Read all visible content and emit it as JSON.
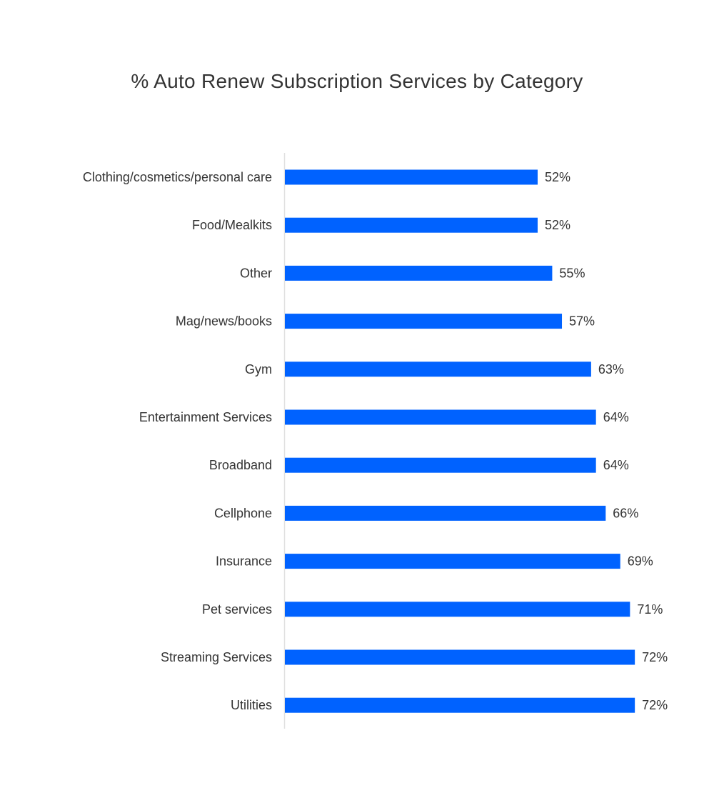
{
  "chart_data": {
    "type": "bar",
    "orientation": "horizontal",
    "title": "% Auto Renew Subscription Services by Category",
    "xlabel": "",
    "ylabel": "",
    "xlim": [
      0,
      100
    ],
    "grid": false,
    "bar_color": "#0062FF",
    "categories": [
      "Clothing/cosmetics/personal care",
      "Food/Mealkits",
      "Other",
      "Mag/news/books",
      "Gym",
      "Entertainment Services",
      "Broadband",
      "Cellphone",
      "Insurance",
      "Pet services",
      "Streaming Services",
      "Utilities"
    ],
    "values": [
      52,
      52,
      55,
      57,
      63,
      64,
      64,
      66,
      69,
      71,
      72,
      72
    ],
    "value_labels": [
      "52%",
      "52%",
      "55%",
      "57%",
      "63%",
      "64%",
      "64%",
      "66%",
      "69%",
      "71%",
      "72%",
      "72%"
    ]
  }
}
